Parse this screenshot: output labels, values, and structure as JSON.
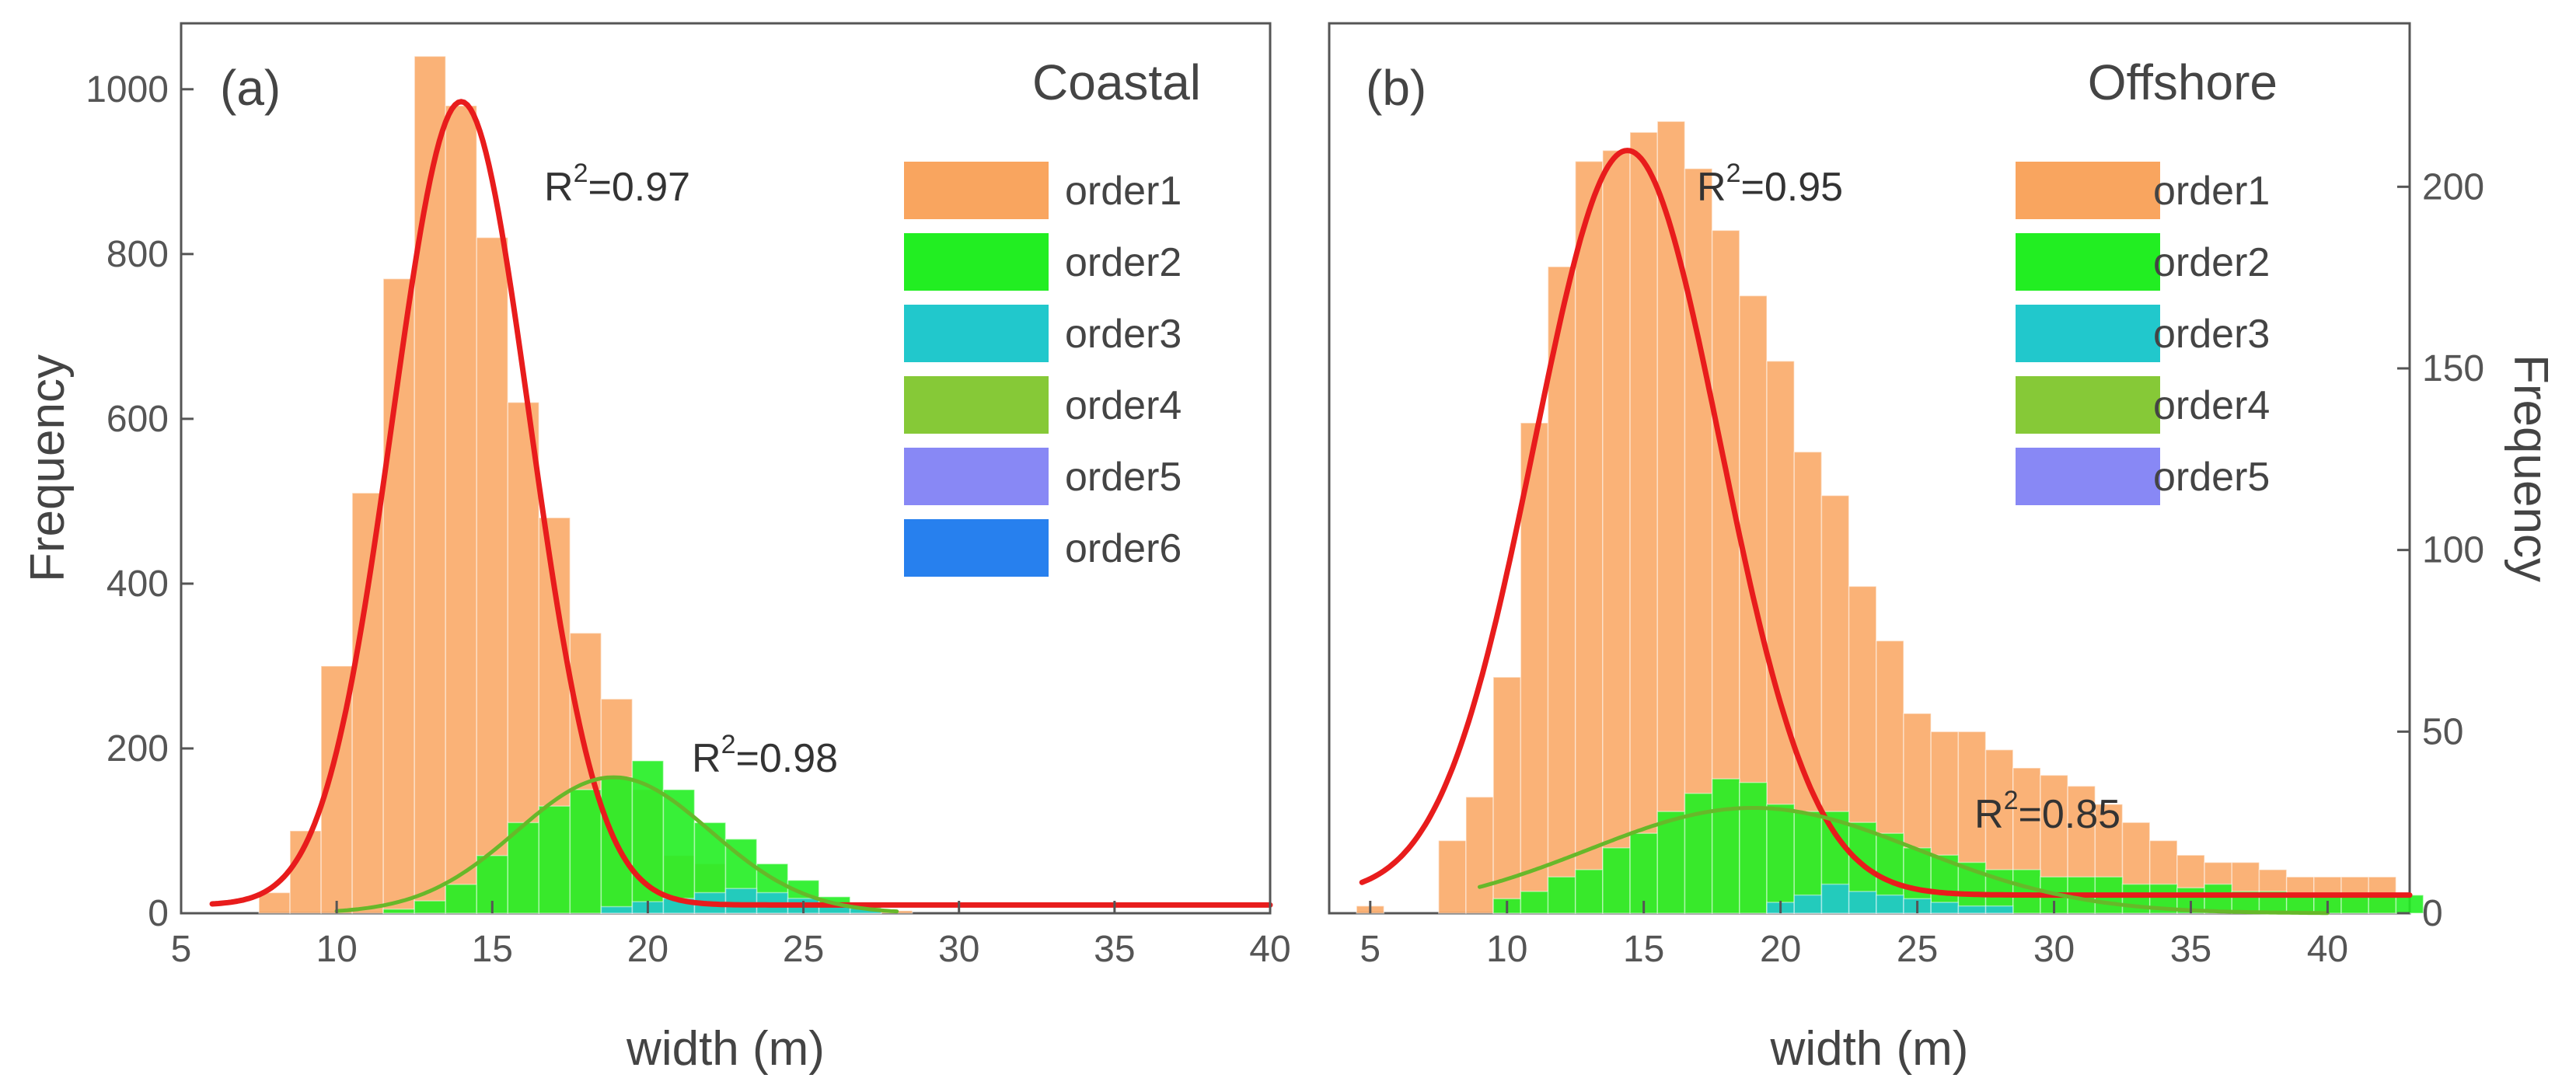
{
  "chart_data": [
    {
      "type": "bar",
      "panel": "(a)",
      "title": "Coastal",
      "xlabel": "width (m)",
      "ylabel": "Frequency",
      "xlim": [
        5,
        40
      ],
      "ylim": [
        0,
        1080
      ],
      "xticks": [
        5,
        10,
        15,
        20,
        25,
        30,
        35,
        40
      ],
      "yticks": [
        0,
        200,
        400,
        600,
        800,
        1000
      ],
      "bin_width": 1,
      "legend_labels": [
        "order1",
        "order2",
        "order3",
        "order4",
        "order5",
        "order6"
      ],
      "colors": {
        "order1": "#f9a55f",
        "order2": "#22ee22",
        "order3": "#21c8cc",
        "order4": "#86c937",
        "order5": "#8888f5",
        "order6": "#2780ee",
        "fit": "#e81c1c",
        "fit2": "#67b82a"
      },
      "series": [
        {
          "name": "order1",
          "start": 7.5,
          "values": [
            25,
            100,
            300,
            510,
            770,
            1040,
            980,
            820,
            620,
            480,
            340,
            260,
            150,
            70,
            60,
            30,
            15,
            8,
            5,
            3,
            3
          ]
        },
        {
          "name": "order2",
          "start": 11.5,
          "values": [
            5,
            15,
            35,
            70,
            110,
            130,
            150,
            165,
            185,
            150,
            110,
            90,
            60,
            40,
            20,
            12
          ]
        },
        {
          "name": "order3",
          "start": 18.5,
          "values": [
            8,
            14,
            18,
            25,
            30,
            25,
            18,
            10,
            6
          ]
        }
      ],
      "fits": [
        {
          "name": "order1 fit",
          "type": "gaussian",
          "center": 14,
          "amplitude": 975,
          "sigma": 2.2,
          "baseline": 10,
          "x_range": [
            6,
            40
          ],
          "r2_label": "R",
          "r2_exponent": "2",
          "r2_value": "=0.97"
        },
        {
          "name": "order2 fit",
          "type": "gaussian",
          "center": 18.9,
          "amplitude": 165,
          "sigma": 3.1,
          "baseline": 0,
          "x_range": [
            10,
            28
          ],
          "r2_label": "R",
          "r2_exponent": "2",
          "r2_value": "=0.98"
        }
      ]
    },
    {
      "type": "bar",
      "panel": "(b)",
      "title": "Offshore",
      "xlabel": "width (m)",
      "ylabel": "Frequency",
      "xlim": [
        3.5,
        43
      ],
      "ylim": [
        0,
        245
      ],
      "xticks": [
        5,
        10,
        15,
        20,
        25,
        30,
        35,
        40
      ],
      "yticks": [
        0,
        50,
        100,
        150,
        200
      ],
      "bin_width": 1,
      "legend_labels": [
        "order1",
        "order2",
        "order3",
        "order4",
        "order5"
      ],
      "colors": {
        "order1": "#f9a55f",
        "order2": "#22ee22",
        "order3": "#21c8cc",
        "order4": "#86c937",
        "order5": "#8888f5",
        "fit": "#e81c1c",
        "fit2": "#67b82a"
      },
      "series": [
        {
          "name": "order1",
          "start": 4.5,
          "values": [
            2,
            0,
            0,
            20,
            32,
            65,
            135,
            178,
            207,
            210,
            215,
            218,
            205,
            188,
            170,
            152,
            127,
            115,
            90,
            75,
            55,
            50,
            50,
            45,
            40,
            38,
            35,
            30,
            25,
            20,
            16,
            14,
            14,
            12,
            10,
            10,
            10,
            10
          ]
        },
        {
          "name": "order2",
          "start": 9.5,
          "values": [
            4,
            6,
            10,
            12,
            18,
            22,
            28,
            33,
            37,
            36,
            30,
            28,
            28,
            25,
            22,
            18,
            16,
            14,
            12,
            12,
            10,
            10,
            10,
            8,
            8,
            7,
            8,
            6,
            6,
            5,
            5,
            5,
            5,
            5
          ]
        },
        {
          "name": "order3",
          "start": 19.5,
          "values": [
            3,
            5,
            8,
            6,
            5,
            4,
            3,
            2,
            2
          ]
        }
      ],
      "fits": [
        {
          "name": "order1 fit",
          "type": "gaussian",
          "center": 14.4,
          "amplitude": 205,
          "sigma": 3.4,
          "baseline": 5,
          "x_range": [
            4.7,
            43
          ],
          "r2_label": "R",
          "r2_exponent": "2",
          "r2_value": "=0.95"
        },
        {
          "name": "order2 fit",
          "type": "gaussian",
          "center": 19,
          "amplitude": 29,
          "sigma": 6.0,
          "baseline": 0,
          "x_range": [
            9,
            40
          ],
          "r2_label": "R",
          "r2_exponent": "2",
          "r2_value": "=0.85"
        }
      ]
    }
  ]
}
